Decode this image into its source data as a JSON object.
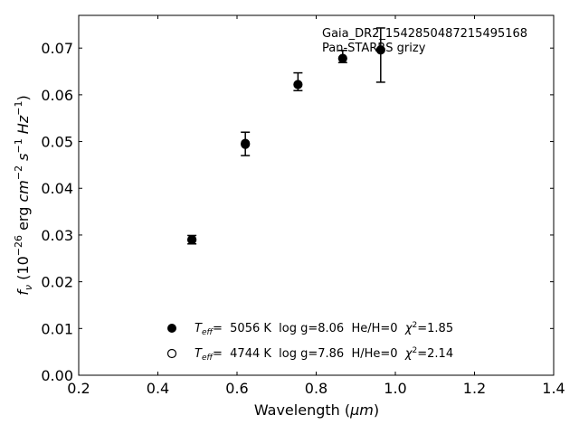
{
  "chart_data": {
    "type": "scatter",
    "xlabel_main": "Wavelength (",
    "xlabel_unit": "μm",
    "xlabel_close": ")",
    "ylabel_f": "f",
    "ylabel_nu": "ν",
    "ylabel_open": " (10",
    "ylabel_exp26": "−26",
    "ylabel_erg": " erg ",
    "ylabel_cm": "cm",
    "ylabel_exp2": "−2",
    "ylabel_s": " s",
    "ylabel_exp1a": "−1",
    "ylabel_hz": " Hz",
    "ylabel_exp1b": "−1",
    "ylabel_close": ")",
    "xlim": [
      0.2,
      1.4
    ],
    "ylim": [
      0.0,
      0.077
    ],
    "xticks": [
      0.2,
      0.4,
      0.6,
      0.8,
      1.0,
      1.2,
      1.4
    ],
    "xtick_labels": [
      "0.2",
      "0.4",
      "0.6",
      "0.8",
      "1.0",
      "1.2",
      "1.4"
    ],
    "yticks": [
      0.0,
      0.01,
      0.02,
      0.03,
      0.04,
      0.05,
      0.06,
      0.07
    ],
    "ytick_labels": [
      "0.00",
      "0.01",
      "0.02",
      "0.03",
      "0.04",
      "0.05",
      "0.06",
      "0.07"
    ],
    "annotation": [
      "Gaia_DR2_1542850487215495168",
      "Pan-STARRS grizy"
    ],
    "observed": {
      "x": [
        0.486,
        0.621,
        0.754,
        0.867,
        0.963
      ],
      "y": [
        0.029,
        0.0495,
        0.0628,
        0.0682,
        0.0685
      ],
      "err": [
        0.0009,
        0.0025,
        0.0019,
        0.0013,
        0.0058
      ]
    },
    "series": [
      {
        "marker": "filled",
        "teff_label": "T",
        "teff_sub": "eff",
        "text_a": "=  5056 K  log g=8.06  He/H=0  ",
        "chi": "χ",
        "chi_exp": "2",
        "text_b": "=1.85",
        "x": [
          0.486,
          0.621,
          0.754,
          0.867,
          0.963
        ],
        "y": [
          0.029,
          0.0496,
          0.0622,
          0.0678,
          0.0696
        ]
      },
      {
        "marker": "open",
        "teff_label": "T",
        "teff_sub": "eff",
        "text_a": "=  4744 K  log g=7.86  H/He=0  ",
        "chi": "χ",
        "chi_exp": "2",
        "text_b": "=2.14",
        "x": [
          0.486,
          0.621
        ],
        "y": [
          0.029,
          0.0494
        ]
      }
    ]
  }
}
